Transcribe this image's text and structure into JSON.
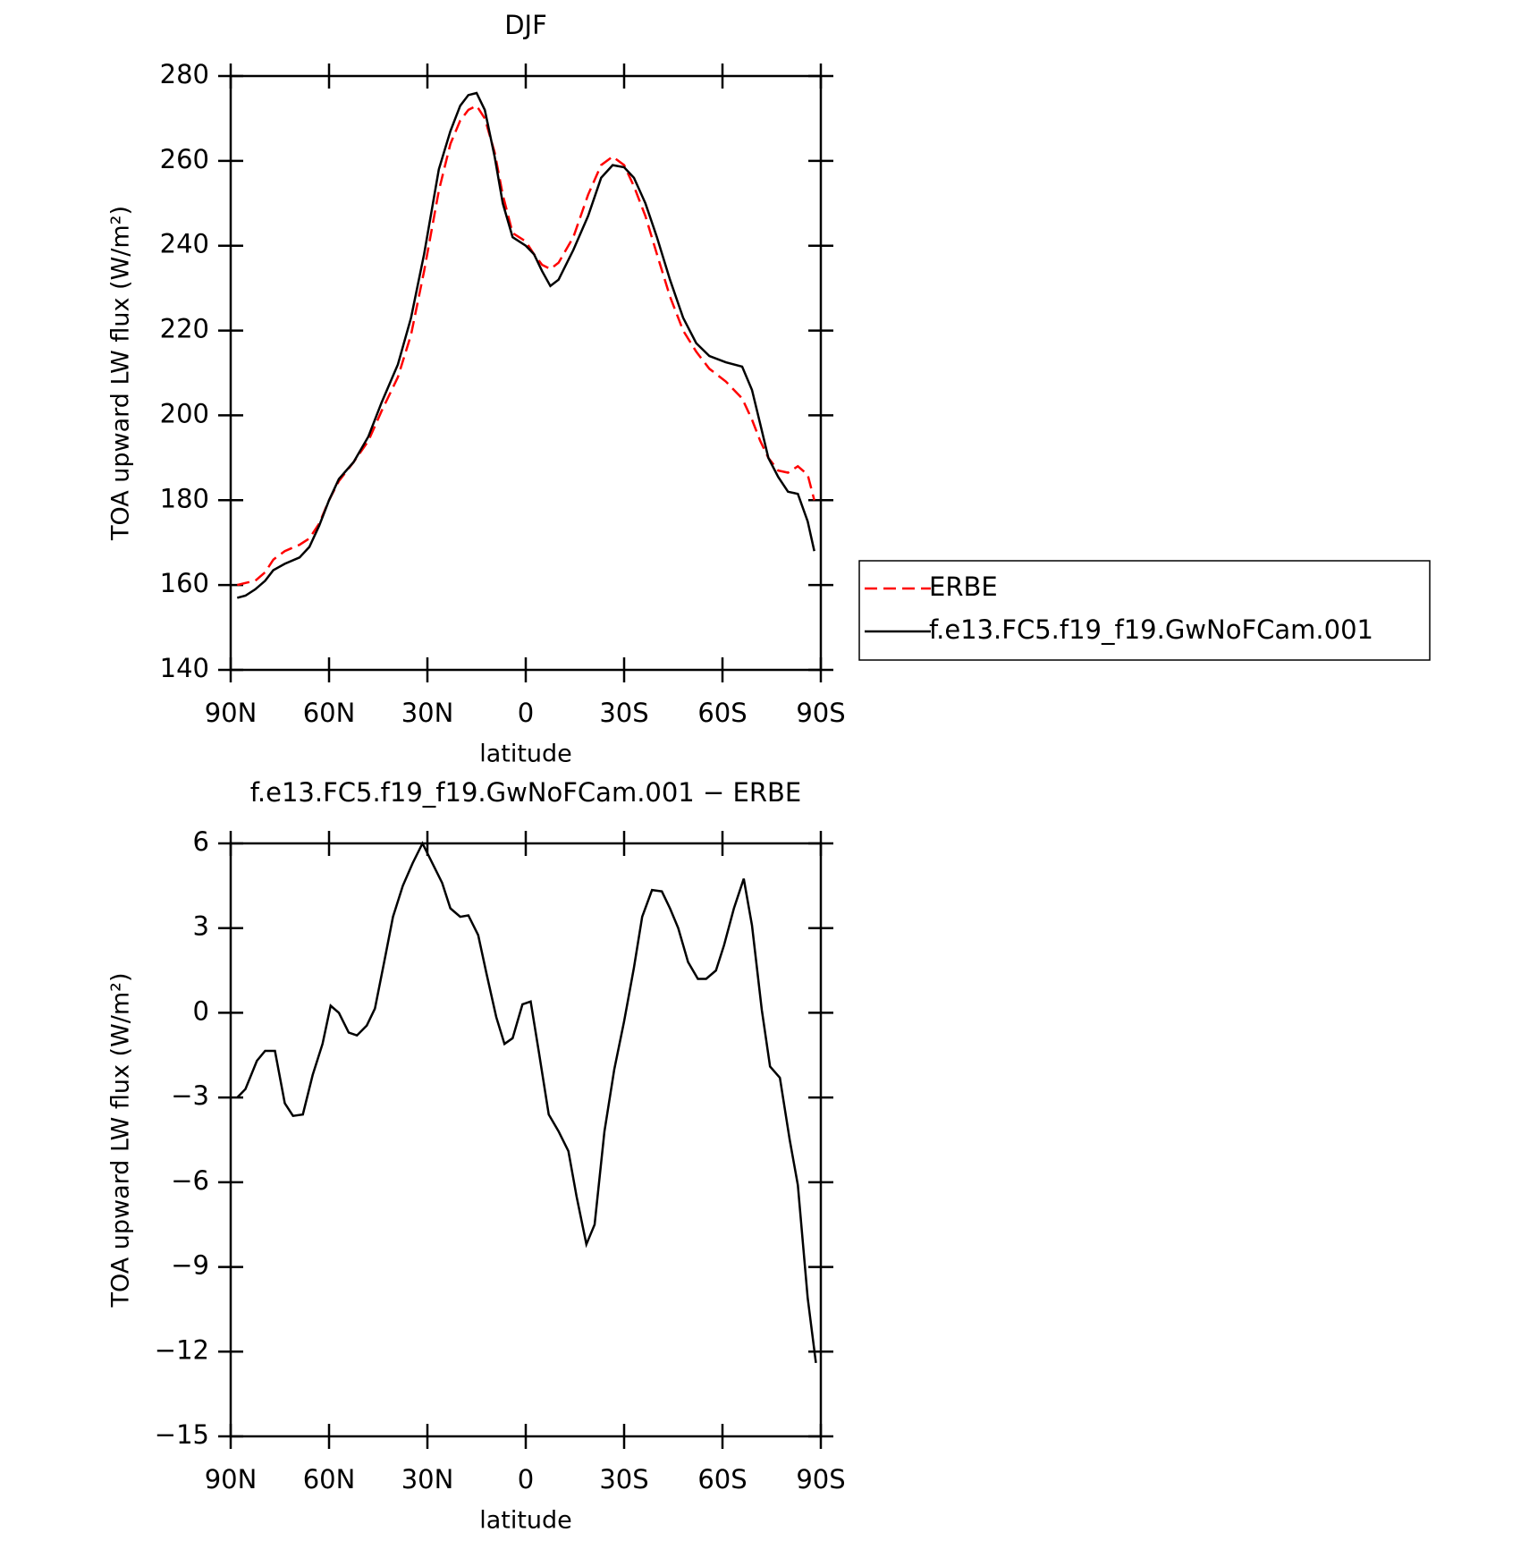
{
  "chart_data": [
    {
      "type": "line",
      "title": "DJF",
      "xlabel": "latitude",
      "ylabel": "TOA upward LW flux (W/m²)",
      "x": [
        88,
        85.5,
        82.5,
        79.5,
        77,
        73.5,
        69,
        66,
        63,
        60,
        57,
        52.5,
        48,
        44,
        39,
        35,
        31,
        26.5,
        23,
        20,
        17.5,
        15,
        12.5,
        9.5,
        7,
        4,
        0,
        -2.5,
        -5,
        -7.5,
        -10,
        -14.5,
        -19,
        -23,
        -26.5,
        -30,
        -33,
        -36.5,
        -40,
        -44,
        -48,
        -52,
        -56,
        -61,
        -66,
        -69,
        -71.5,
        -74,
        -77,
        -80,
        -83,
        -86,
        -88
      ],
      "series": [
        {
          "name": "ERBE",
          "color": "#ff0000",
          "linestyle": "dashed",
          "values": [
            160,
            160.5,
            161,
            163,
            166,
            168,
            169.5,
            171,
            174.5,
            180,
            184.5,
            189,
            194,
            201,
            209,
            219,
            234,
            253,
            264,
            269.5,
            272,
            273,
            270,
            262,
            252,
            243,
            241,
            238,
            235.5,
            234.5,
            236,
            242,
            252,
            259,
            261,
            259,
            254,
            247,
            238,
            228,
            220,
            215,
            211,
            208,
            204,
            199,
            194,
            190,
            187,
            186.5,
            188,
            186,
            180
          ]
        },
        {
          "name": "f.e13.FC5.f19_f19.GwNoFCam.001",
          "color": "#000000",
          "linestyle": "solid",
          "values": [
            157,
            157.5,
            159,
            161,
            163.5,
            165,
            166.5,
            169,
            174,
            180,
            185,
            189,
            195,
            203,
            212,
            223,
            238,
            258,
            267,
            273,
            275.5,
            276,
            272,
            261,
            250,
            242,
            240,
            238,
            234,
            230.5,
            232,
            239,
            247,
            256,
            259,
            258.5,
            256,
            250,
            242,
            232,
            223,
            217,
            214,
            212.5,
            211.5,
            206,
            198,
            190,
            185.5,
            182,
            181.5,
            175,
            168
          ]
        }
      ],
      "xlim": [
        90,
        -90
      ],
      "xticks": [
        {
          "value": 90,
          "label": "90N"
        },
        {
          "value": 60,
          "label": "60N"
        },
        {
          "value": 30,
          "label": "30N"
        },
        0,
        {
          "value": -30,
          "label": "30S"
        },
        {
          "value": -60,
          "label": "60S"
        },
        {
          "value": -90,
          "label": "90S"
        }
      ],
      "ylim": [
        140,
        280
      ],
      "yticks": [
        140,
        160,
        180,
        200,
        220,
        240,
        260,
        280
      ],
      "legend": "right"
    },
    {
      "type": "line",
      "title": "f.e13.FC5.f19_f19.GwNoFCam.001 − ERBE",
      "xlabel": "latitude",
      "ylabel": "TOA upward LW flux (W/m²)",
      "x": [
        88,
        85.5,
        82,
        79.5,
        76.5,
        73.5,
        71,
        68,
        65,
        62,
        59.5,
        57,
        54,
        51.5,
        48.5,
        46,
        43,
        40.5,
        37.5,
        34.5,
        31.5,
        28.5,
        25.5,
        23,
        20,
        17.5,
        14.5,
        12,
        9,
        6.5,
        4,
        1,
        -1.5,
        -4,
        -7,
        -10,
        -13,
        -15.5,
        -18.5,
        -21,
        -24,
        -27,
        -30,
        -33,
        -35.5,
        -38.5,
        -41.5,
        -44,
        -46.5,
        -49.5,
        -52.5,
        -55,
        -58,
        -60.5,
        -63.5,
        -66.5,
        -69,
        -72,
        -74.5,
        -77.5,
        -80.5,
        -83,
        -86,
        -88.5
      ],
      "series": [
        {
          "color": "#000000",
          "linestyle": "solid",
          "values": [
            -3,
            -2.7,
            -1.7,
            -1.35,
            -1.35,
            -3.2,
            -3.65,
            -3.6,
            -2.2,
            -1.1,
            0.25,
            0,
            -0.7,
            -0.8,
            -0.45,
            0.15,
            1.9,
            3.4,
            4.5,
            5.3,
            6,
            5.3,
            4.6,
            3.7,
            3.4,
            3.45,
            2.75,
            1.4,
            -0.15,
            -1.1,
            -0.9,
            0.3,
            0.4,
            -1.4,
            -3.6,
            -4.2,
            -4.9,
            -6.5,
            -8.2,
            -7.5,
            -4.2,
            -2,
            -0.3,
            1.6,
            3.4,
            4.35,
            4.3,
            3.7,
            3,
            1.8,
            1.2,
            1.2,
            1.5,
            2.4,
            3.7,
            4.75,
            3.1,
            0.1,
            -1.9,
            -2.3,
            -4.5,
            -6.1,
            -10.1,
            -12.4
          ]
        }
      ],
      "xlim": [
        90,
        -90
      ],
      "xticks": [
        {
          "value": 90,
          "label": "90N"
        },
        {
          "value": 60,
          "label": "60N"
        },
        {
          "value": 30,
          "label": "30N"
        },
        0,
        {
          "value": -30,
          "label": "30S"
        },
        {
          "value": -60,
          "label": "60S"
        },
        {
          "value": -90,
          "label": "90S"
        }
      ],
      "ylim": [
        -15,
        6
      ],
      "yticks": [
        6,
        3,
        0,
        {
          "value": -3,
          "label": "−3"
        },
        {
          "value": -6,
          "label": "−6"
        },
        {
          "value": -9,
          "label": "−9"
        },
        {
          "value": -12,
          "label": "−12"
        },
        {
          "value": -15,
          "label": "−15"
        }
      ]
    }
  ]
}
